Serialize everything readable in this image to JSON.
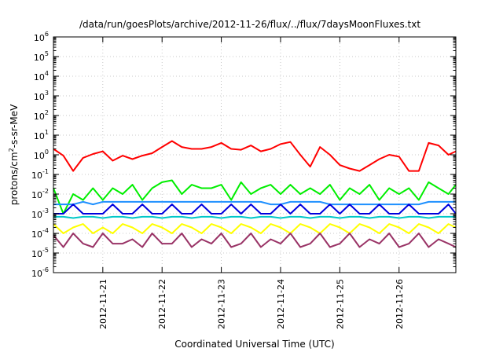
{
  "chart_data": {
    "type": "line",
    "title": "/data/run/goesPlots/archive/2012-11-26/flux/../flux/7daysMoonFluxes.txt",
    "xlabel": "Coordinated Universal Time (UTC)",
    "ylabel_parts": [
      "protons/cm",
      "2",
      "-s-sr-MeV"
    ],
    "y_scale": "log",
    "ylim": [
      1e-06,
      1000000.0
    ],
    "y_ticks": [
      {
        "base": "10",
        "exp": "-6",
        "value": 1e-06
      },
      {
        "base": "10",
        "exp": "-5",
        "value": 1e-05
      },
      {
        "base": "10",
        "exp": "-4",
        "value": 0.0001
      },
      {
        "base": "10",
        "exp": "-3",
        "value": 0.001
      },
      {
        "base": "10",
        "exp": "-2",
        "value": 0.01
      },
      {
        "base": "10",
        "exp": "-1",
        "value": 0.1
      },
      {
        "base": "10",
        "exp": "0",
        "value": 1
      },
      {
        "base": "10",
        "exp": "1",
        "value": 10
      },
      {
        "base": "10",
        "exp": "2",
        "value": 100
      },
      {
        "base": "10",
        "exp": "3",
        "value": 1000
      },
      {
        "base": "10",
        "exp": "4",
        "value": 10000
      },
      {
        "base": "10",
        "exp": "5",
        "value": 100000
      },
      {
        "base": "10",
        "exp": "6",
        "value": 1000000
      }
    ],
    "xlim": [
      "2012-11-20T04:00",
      "2012-11-26T23:00"
    ],
    "x_ticks": [
      "2012-11-21",
      "2012-11-22",
      "2012-11-23",
      "2012-11-24",
      "2012-11-25",
      "2012-11-26"
    ],
    "grid": true,
    "legend": "none",
    "x_times": [
      "2012-11-20T04:00",
      "2012-11-20T08:00",
      "2012-11-20T12:00",
      "2012-11-20T16:00",
      "2012-11-20T20:00",
      "2012-11-21T00:00",
      "2012-11-21T04:00",
      "2012-11-21T08:00",
      "2012-11-21T12:00",
      "2012-11-21T16:00",
      "2012-11-21T20:00",
      "2012-11-22T00:00",
      "2012-11-22T04:00",
      "2012-11-22T08:00",
      "2012-11-22T12:00",
      "2012-11-22T16:00",
      "2012-11-22T20:00",
      "2012-11-23T00:00",
      "2012-11-23T04:00",
      "2012-11-23T08:00",
      "2012-11-23T12:00",
      "2012-11-23T16:00",
      "2012-11-23T20:00",
      "2012-11-24T00:00",
      "2012-11-24T04:00",
      "2012-11-24T08:00",
      "2012-11-24T12:00",
      "2012-11-24T16:00",
      "2012-11-24T20:00",
      "2012-11-25T00:00",
      "2012-11-25T04:00",
      "2012-11-25T08:00",
      "2012-11-25T12:00",
      "2012-11-25T16:00",
      "2012-11-25T20:00",
      "2012-11-26T00:00",
      "2012-11-26T04:00",
      "2012-11-26T08:00",
      "2012-11-26T12:00",
      "2012-11-26T16:00",
      "2012-11-26T20:00",
      "2012-11-26T23:00"
    ],
    "series": [
      {
        "color": "#ff0000",
        "values": [
          2.0,
          0.9,
          0.15,
          0.7,
          1.1,
          1.5,
          0.5,
          0.9,
          0.6,
          0.9,
          1.2,
          2.5,
          5.0,
          2.5,
          2.0,
          2.0,
          2.5,
          4.0,
          2.0,
          1.8,
          3.0,
          1.5,
          2.0,
          3.5,
          4.5,
          1.0,
          0.25,
          2.5,
          1.0,
          0.3,
          0.2,
          0.15,
          0.3,
          0.6,
          1.0,
          0.8,
          0.15,
          0.15,
          4.0,
          3.0,
          1.0,
          1.5
        ]
      },
      {
        "color": "#00ee00",
        "values": [
          0.02,
          0.001,
          0.01,
          0.005,
          0.02,
          0.005,
          0.02,
          0.01,
          0.03,
          0.005,
          0.02,
          0.04,
          0.05,
          0.01,
          0.03,
          0.02,
          0.02,
          0.03,
          0.005,
          0.04,
          0.01,
          0.02,
          0.03,
          0.01,
          0.03,
          0.01,
          0.02,
          0.01,
          0.03,
          0.005,
          0.02,
          0.01,
          0.03,
          0.005,
          0.02,
          0.01,
          0.02,
          0.005,
          0.04,
          0.02,
          0.01,
          0.03
        ]
      },
      {
        "color": "#1e90ff",
        "values": [
          0.003,
          0.003,
          0.003,
          0.004,
          0.003,
          0.004,
          0.004,
          0.004,
          0.004,
          0.004,
          0.004,
          0.004,
          0.004,
          0.004,
          0.004,
          0.004,
          0.004,
          0.004,
          0.004,
          0.004,
          0.004,
          0.004,
          0.003,
          0.003,
          0.004,
          0.004,
          0.004,
          0.004,
          0.003,
          0.003,
          0.003,
          0.003,
          0.003,
          0.003,
          0.003,
          0.003,
          0.003,
          0.003,
          0.004,
          0.004,
          0.004,
          0.004
        ]
      },
      {
        "color": "#0000dd",
        "values": [
          0.001,
          0.001,
          0.003,
          0.001,
          0.001,
          0.001,
          0.003,
          0.001,
          0.001,
          0.003,
          0.001,
          0.001,
          0.003,
          0.001,
          0.001,
          0.003,
          0.001,
          0.001,
          0.003,
          0.001,
          0.003,
          0.001,
          0.001,
          0.003,
          0.001,
          0.003,
          0.001,
          0.001,
          0.003,
          0.001,
          0.003,
          0.001,
          0.001,
          0.003,
          0.001,
          0.001,
          0.003,
          0.001,
          0.001,
          0.001,
          0.003,
          0.001
        ]
      },
      {
        "color": "#00c8c8",
        "values": [
          0.0007,
          0.0007,
          0.0006,
          0.0007,
          0.0007,
          0.0006,
          0.0007,
          0.0007,
          0.0006,
          0.0007,
          0.0007,
          0.0006,
          0.0007,
          0.0007,
          0.0006,
          0.0007,
          0.0007,
          0.0006,
          0.0007,
          0.0007,
          0.0006,
          0.0007,
          0.0007,
          0.0006,
          0.0007,
          0.0007,
          0.0006,
          0.0007,
          0.0007,
          0.0006,
          0.0007,
          0.0007,
          0.0006,
          0.0007,
          0.0007,
          0.0006,
          0.0007,
          0.0007,
          0.0006,
          0.0007,
          0.0007,
          0.0007
        ]
      },
      {
        "color": "#ffff00",
        "values": [
          0.0003,
          0.0001,
          0.0002,
          0.0003,
          0.0001,
          0.0002,
          0.0001,
          0.0003,
          0.0002,
          0.0001,
          0.0003,
          0.0002,
          0.0001,
          0.0003,
          0.0002,
          0.0001,
          0.0003,
          0.0002,
          0.0001,
          0.0003,
          0.0002,
          0.0001,
          0.0003,
          0.0002,
          0.0001,
          0.0003,
          0.0002,
          0.0001,
          0.0003,
          0.0002,
          0.0001,
          0.0003,
          0.0002,
          0.0001,
          0.0003,
          0.0002,
          0.0001,
          0.0003,
          0.0002,
          0.0001,
          0.0003,
          0.0002
        ]
      },
      {
        "color": "#993366",
        "values": [
          8e-05,
          2e-05,
          0.0001,
          3e-05,
          2e-05,
          0.0001,
          3e-05,
          3e-05,
          5e-05,
          2e-05,
          0.0001,
          3e-05,
          3e-05,
          0.0001,
          2e-05,
          5e-05,
          3e-05,
          0.0001,
          2e-05,
          3e-05,
          0.0001,
          2e-05,
          5e-05,
          3e-05,
          0.0001,
          2e-05,
          3e-05,
          0.0001,
          2e-05,
          3e-05,
          0.0001,
          2e-05,
          5e-05,
          3e-05,
          0.0001,
          2e-05,
          3e-05,
          0.0001,
          2e-05,
          5e-05,
          3e-05,
          2e-05
        ]
      }
    ]
  }
}
